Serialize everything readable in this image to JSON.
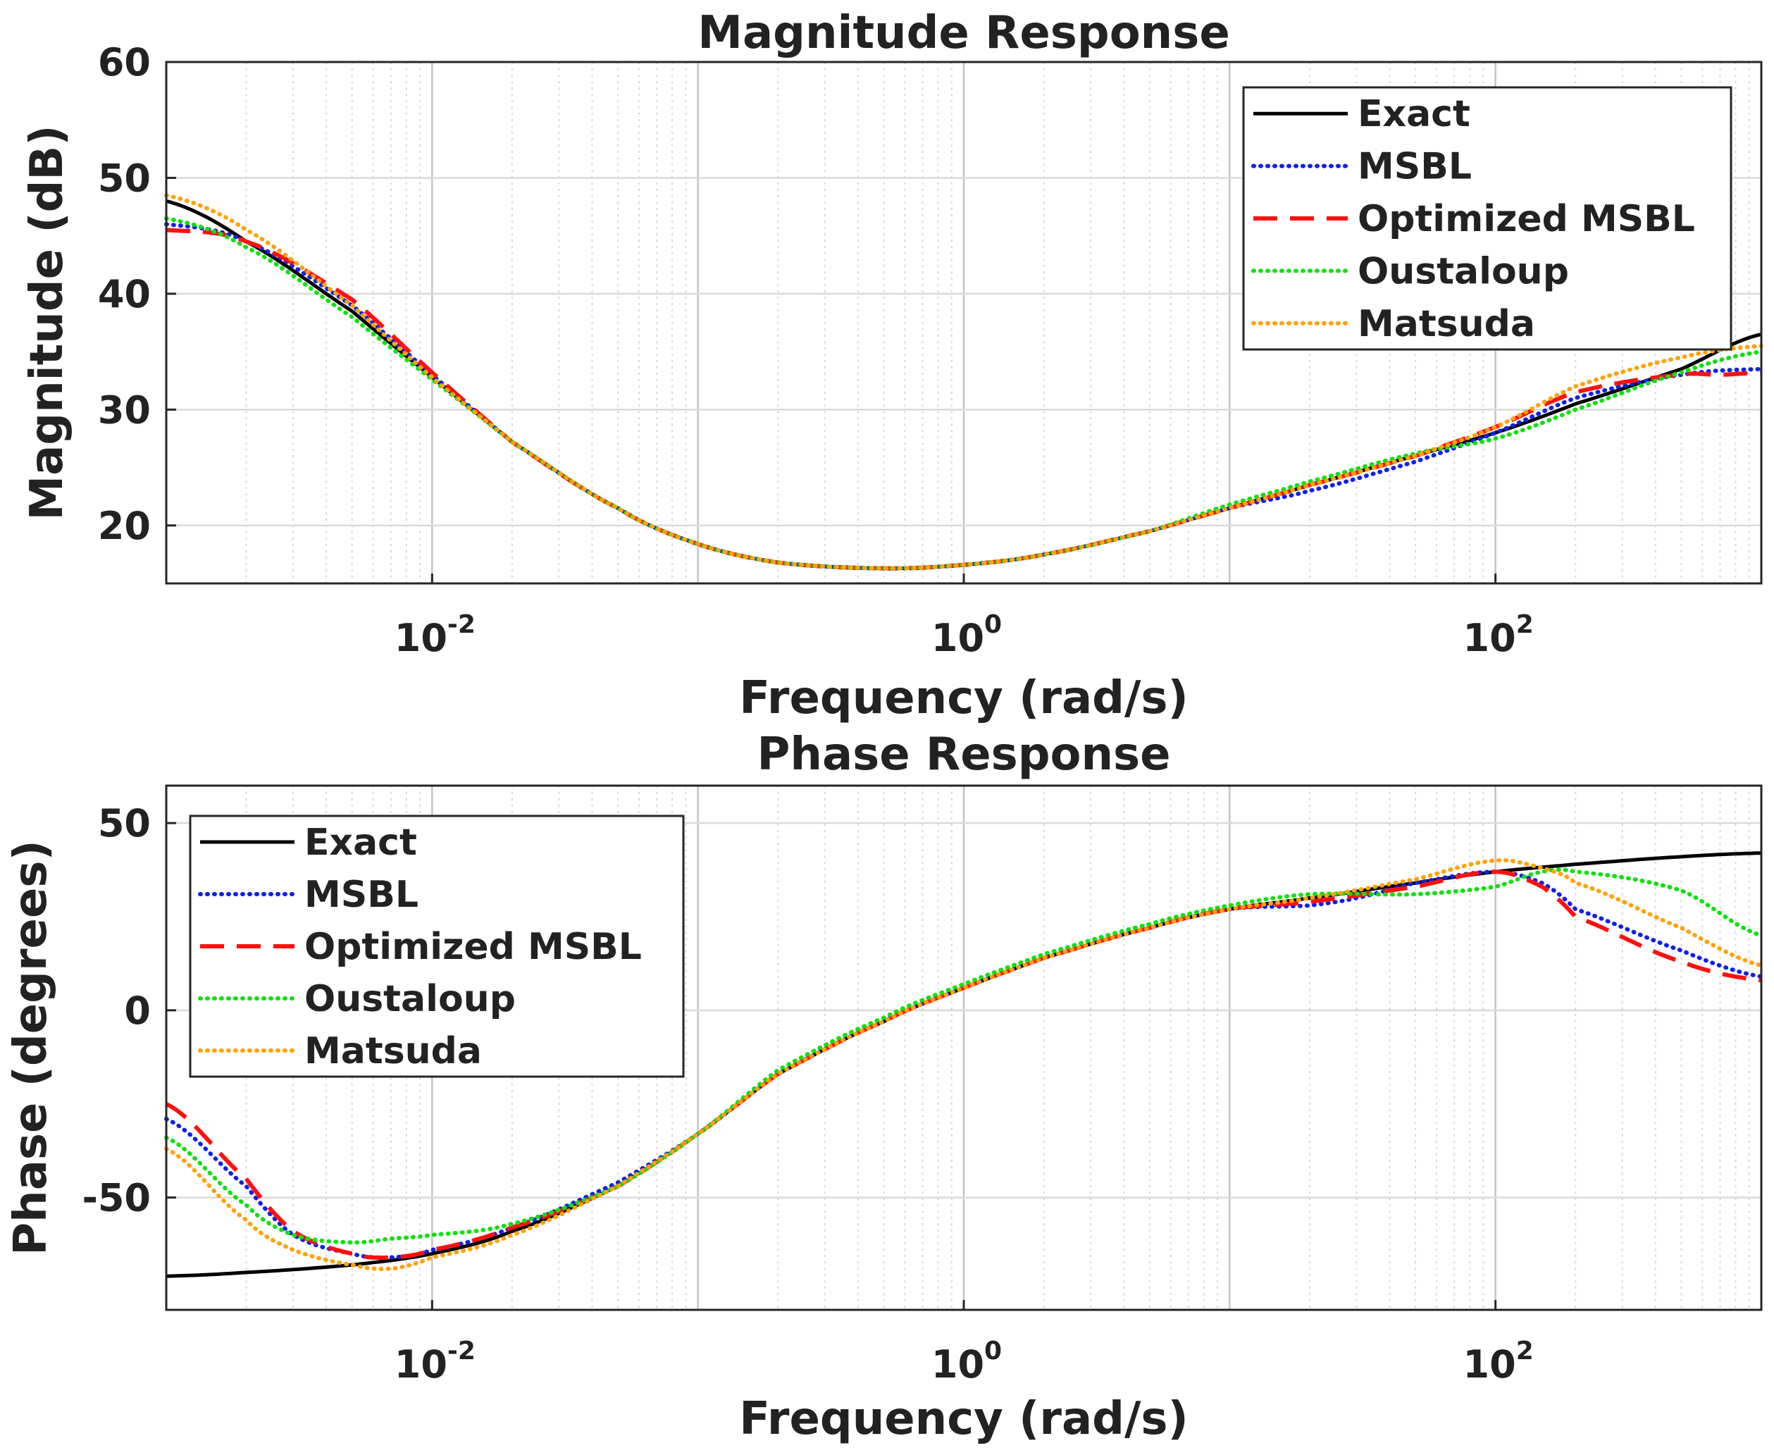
{
  "chart_data": [
    {
      "type": "line",
      "title": "Magnitude Response",
      "xlabel": "Frequency (rad/s)",
      "ylabel": "Magnitude (dB)",
      "xscale": "log",
      "xlim": [
        0.001,
        1000
      ],
      "ylim": [
        15,
        60
      ],
      "xticks": [
        {
          "base": "10",
          "exp": "-2",
          "value": 0.01
        },
        {
          "base": "10",
          "exp": "0",
          "value": 1
        },
        {
          "base": "10",
          "exp": "2",
          "value": 100
        }
      ],
      "yticks": [
        {
          "label": "20",
          "value": 20
        },
        {
          "label": "30",
          "value": 30
        },
        {
          "label": "40",
          "value": 40
        },
        {
          "label": "50",
          "value": 50
        },
        {
          "label": "60",
          "value": 60
        }
      ],
      "grid": true,
      "legend_position": "top-right",
      "series": [
        {
          "name": "Exact",
          "color": "#000000",
          "style": "solid",
          "points": [
            [
              0.001,
              48.0
            ],
            [
              0.002,
              44.5
            ],
            [
              0.005,
              38.5
            ],
            [
              0.01,
              32.8
            ],
            [
              0.02,
              27.2
            ],
            [
              0.05,
              21.5
            ],
            [
              0.1,
              18.4
            ],
            [
              0.2,
              16.8
            ],
            [
              0.5,
              16.3
            ],
            [
              1,
              16.6
            ],
            [
              2,
              17.5
            ],
            [
              5,
              19.5
            ],
            [
              10,
              21.5
            ],
            [
              20,
              23.5
            ],
            [
              50,
              26.0
            ],
            [
              100,
              28.0
            ],
            [
              200,
              30.5
            ],
            [
              500,
              33.5
            ],
            [
              1000,
              36.5
            ]
          ]
        },
        {
          "name": "MSBL",
          "color": "#1020e8",
          "style": "dotted",
          "points": [
            [
              0.001,
              46.0
            ],
            [
              0.002,
              44.5
            ],
            [
              0.005,
              39.0
            ],
            [
              0.01,
              33.0
            ],
            [
              0.02,
              27.2
            ],
            [
              0.05,
              21.5
            ],
            [
              0.1,
              18.4
            ],
            [
              0.2,
              16.8
            ],
            [
              0.5,
              16.3
            ],
            [
              1,
              16.6
            ],
            [
              2,
              17.5
            ],
            [
              5,
              19.5
            ],
            [
              10,
              21.5
            ],
            [
              20,
              23.0
            ],
            [
              50,
              25.5
            ],
            [
              100,
              28.0
            ],
            [
              200,
              31.0
            ],
            [
              500,
              33.0
            ],
            [
              1000,
              33.5
            ]
          ]
        },
        {
          "name": "Optimized MSBL",
          "color": "#ff1010",
          "style": "dashed",
          "points": [
            [
              0.001,
              45.5
            ],
            [
              0.002,
              44.5
            ],
            [
              0.005,
              39.5
            ],
            [
              0.01,
              33.2
            ],
            [
              0.02,
              27.2
            ],
            [
              0.05,
              21.5
            ],
            [
              0.1,
              18.4
            ],
            [
              0.2,
              16.8
            ],
            [
              0.5,
              16.3
            ],
            [
              1,
              16.6
            ],
            [
              2,
              17.5
            ],
            [
              5,
              19.5
            ],
            [
              10,
              21.5
            ],
            [
              20,
              23.5
            ],
            [
              50,
              26.0
            ],
            [
              100,
              28.5
            ],
            [
              200,
              31.5
            ],
            [
              500,
              33.0
            ],
            [
              700,
              33.0
            ],
            [
              1000,
              33.2
            ]
          ]
        },
        {
          "name": "Oustaloup",
          "color": "#10e010",
          "style": "dotted",
          "points": [
            [
              0.001,
              46.5
            ],
            [
              0.002,
              44.0
            ],
            [
              0.005,
              38.0
            ],
            [
              0.01,
              32.6
            ],
            [
              0.02,
              27.2
            ],
            [
              0.05,
              21.5
            ],
            [
              0.1,
              18.4
            ],
            [
              0.2,
              16.8
            ],
            [
              0.5,
              16.3
            ],
            [
              1,
              16.6
            ],
            [
              2,
              17.5
            ],
            [
              5,
              19.5
            ],
            [
              10,
              21.8
            ],
            [
              20,
              23.8
            ],
            [
              50,
              26.2
            ],
            [
              100,
              27.5
            ],
            [
              200,
              30.0
            ],
            [
              500,
              33.2
            ],
            [
              1000,
              35.0
            ]
          ]
        },
        {
          "name": "Matsuda",
          "color": "#ffa20a",
          "style": "dotted",
          "points": [
            [
              0.001,
              48.5
            ],
            [
              0.002,
              45.5
            ],
            [
              0.005,
              39.0
            ],
            [
              0.01,
              32.8
            ],
            [
              0.02,
              27.2
            ],
            [
              0.05,
              21.5
            ],
            [
              0.1,
              18.4
            ],
            [
              0.2,
              16.8
            ],
            [
              0.5,
              16.3
            ],
            [
              1,
              16.6
            ],
            [
              2,
              17.5
            ],
            [
              5,
              19.5
            ],
            [
              10,
              21.5
            ],
            [
              20,
              23.5
            ],
            [
              50,
              26.0
            ],
            [
              100,
              28.5
            ],
            [
              200,
              32.0
            ],
            [
              500,
              34.5
            ],
            [
              1000,
              35.5
            ]
          ]
        }
      ]
    },
    {
      "type": "line",
      "title": "Phase Response",
      "xlabel": "Frequency (rad/s)",
      "ylabel": "Phase (degrees)",
      "xscale": "log",
      "xlim": [
        0.001,
        1000
      ],
      "ylim": [
        -80,
        60
      ],
      "xticks": [
        {
          "base": "10",
          "exp": "-2",
          "value": 0.01
        },
        {
          "base": "10",
          "exp": "0",
          "value": 1
        },
        {
          "base": "10",
          "exp": "2",
          "value": 100
        }
      ],
      "yticks": [
        {
          "label": "-50",
          "value": -50
        },
        {
          "label": "0",
          "value": 0
        },
        {
          "label": "50",
          "value": 50
        }
      ],
      "grid": true,
      "legend_position": "top-left",
      "series": [
        {
          "name": "Exact",
          "color": "#000000",
          "style": "solid",
          "points": [
            [
              0.001,
              -71
            ],
            [
              0.002,
              -70
            ],
            [
              0.005,
              -68
            ],
            [
              0.01,
              -65
            ],
            [
              0.02,
              -59
            ],
            [
              0.05,
              -47
            ],
            [
              0.1,
              -33
            ],
            [
              0.2,
              -17
            ],
            [
              0.5,
              -3
            ],
            [
              1,
              6
            ],
            [
              2,
              14
            ],
            [
              5,
              22
            ],
            [
              10,
              27
            ],
            [
              20,
              30
            ],
            [
              50,
              34
            ],
            [
              100,
              37
            ],
            [
              200,
              39
            ],
            [
              500,
              41
            ],
            [
              1000,
              42
            ]
          ]
        },
        {
          "name": "MSBL",
          "color": "#1020e8",
          "style": "dotted",
          "points": [
            [
              0.001,
              -29
            ],
            [
              0.002,
              -47
            ],
            [
              0.003,
              -60
            ],
            [
              0.005,
              -65
            ],
            [
              0.007,
              -66
            ],
            [
              0.01,
              -64
            ],
            [
              0.02,
              -58
            ],
            [
              0.05,
              -46
            ],
            [
              0.1,
              -33
            ],
            [
              0.2,
              -17
            ],
            [
              0.5,
              -3
            ],
            [
              1,
              6
            ],
            [
              2,
              14
            ],
            [
              5,
              22
            ],
            [
              10,
              27
            ],
            [
              20,
              28
            ],
            [
              30,
              30
            ],
            [
              50,
              34
            ],
            [
              100,
              37
            ],
            [
              150,
              34
            ],
            [
              200,
              27
            ],
            [
              500,
              16
            ],
            [
              1000,
              9
            ]
          ]
        },
        {
          "name": "Optimized MSBL",
          "color": "#ff1010",
          "style": "dashed",
          "points": [
            [
              0.001,
              -25
            ],
            [
              0.002,
              -45
            ],
            [
              0.003,
              -59
            ],
            [
              0.005,
              -65
            ],
            [
              0.007,
              -66
            ],
            [
              0.01,
              -64
            ],
            [
              0.02,
              -58
            ],
            [
              0.05,
              -47
            ],
            [
              0.1,
              -33
            ],
            [
              0.2,
              -17
            ],
            [
              0.5,
              -3
            ],
            [
              1,
              6
            ],
            [
              2,
              14
            ],
            [
              5,
              22
            ],
            [
              10,
              27
            ],
            [
              20,
              29
            ],
            [
              50,
              33
            ],
            [
              100,
              37
            ],
            [
              150,
              33
            ],
            [
              200,
              25
            ],
            [
              500,
              13
            ],
            [
              1000,
              8
            ]
          ]
        },
        {
          "name": "Oustaloup",
          "color": "#10e010",
          "style": "dotted",
          "points": [
            [
              0.001,
              -34
            ],
            [
              0.002,
              -52
            ],
            [
              0.003,
              -60
            ],
            [
              0.005,
              -62
            ],
            [
              0.007,
              -61
            ],
            [
              0.01,
              -60
            ],
            [
              0.02,
              -57
            ],
            [
              0.05,
              -47
            ],
            [
              0.1,
              -33
            ],
            [
              0.2,
              -16
            ],
            [
              0.5,
              -2
            ],
            [
              1,
              7
            ],
            [
              2,
              15
            ],
            [
              5,
              23
            ],
            [
              10,
              28
            ],
            [
              20,
              31
            ],
            [
              50,
              31
            ],
            [
              100,
              33
            ],
            [
              150,
              37
            ],
            [
              200,
              37
            ],
            [
              500,
              32
            ],
            [
              1000,
              20
            ]
          ]
        },
        {
          "name": "Matsuda",
          "color": "#ffa20a",
          "style": "dotted",
          "points": [
            [
              0.001,
              -37
            ],
            [
              0.002,
              -56
            ],
            [
              0.003,
              -64
            ],
            [
              0.005,
              -68
            ],
            [
              0.007,
              -69
            ],
            [
              0.01,
              -66
            ],
            [
              0.02,
              -60
            ],
            [
              0.05,
              -47
            ],
            [
              0.1,
              -33
            ],
            [
              0.2,
              -17
            ],
            [
              0.5,
              -3
            ],
            [
              1,
              6
            ],
            [
              2,
              14
            ],
            [
              5,
              22
            ],
            [
              10,
              27
            ],
            [
              20,
              30
            ],
            [
              50,
              35
            ],
            [
              100,
              40
            ],
            [
              150,
              38
            ],
            [
              200,
              34
            ],
            [
              500,
              22
            ],
            [
              1000,
              12
            ]
          ]
        }
      ]
    }
  ]
}
